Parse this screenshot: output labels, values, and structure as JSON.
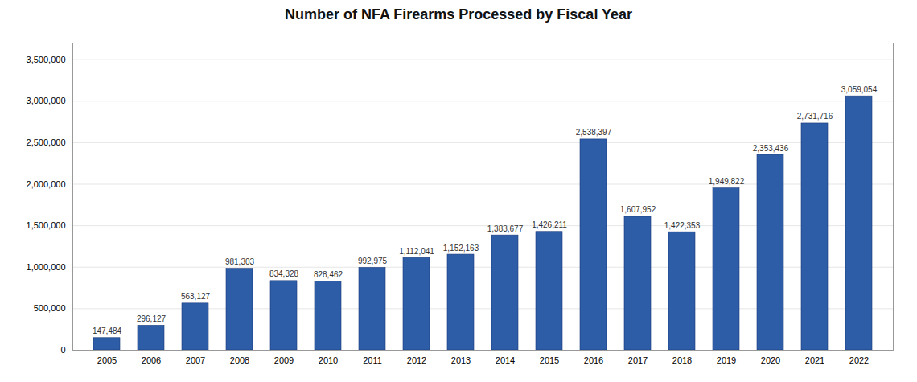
{
  "chart_data": {
    "type": "bar",
    "title": "Number of NFA Firearms Processed by Fiscal Year",
    "categories": [
      "2005",
      "2006",
      "2007",
      "2008",
      "2009",
      "2010",
      "2011",
      "2012",
      "2013",
      "2014",
      "2015",
      "2016",
      "2017",
      "2018",
      "2019",
      "2020",
      "2021",
      "2022"
    ],
    "values": [
      147484,
      296127,
      563127,
      981303,
      834328,
      828462,
      992975,
      1112041,
      1152163,
      1383677,
      1426211,
      2538397,
      1607952,
      1422353,
      1949822,
      2353436,
      2731716,
      3059054
    ],
    "value_labels": [
      "147,484",
      "296,127",
      "563,127",
      "981,303",
      "834,328",
      "828,462",
      "992,975",
      "1,112,041",
      "1,152,163",
      "1,383,677",
      "1,426,211",
      "2,538,397",
      "1,607,952",
      "1,422,353",
      "1,949,822",
      "2,353,436",
      "2,731,716",
      "3,059,054"
    ],
    "color": "#2E5DA8",
    "ylim": [
      0,
      3700000
    ],
    "yticks": [
      0,
      {
        "value": 500000,
        "label": "500,000"
      },
      {
        "value": 1000000,
        "label": "1,000,000"
      },
      {
        "value": 1500000,
        "label": "1,500,000"
      },
      {
        "value": 2000000,
        "label": "2,000,000"
      },
      {
        "value": 2500000,
        "label": "2,500,000"
      },
      {
        "value": 3000000,
        "label": "3,000,000"
      },
      {
        "value": 3500000,
        "label": "3,500,000"
      }
    ],
    "grid": true,
    "data_labels": true
  }
}
